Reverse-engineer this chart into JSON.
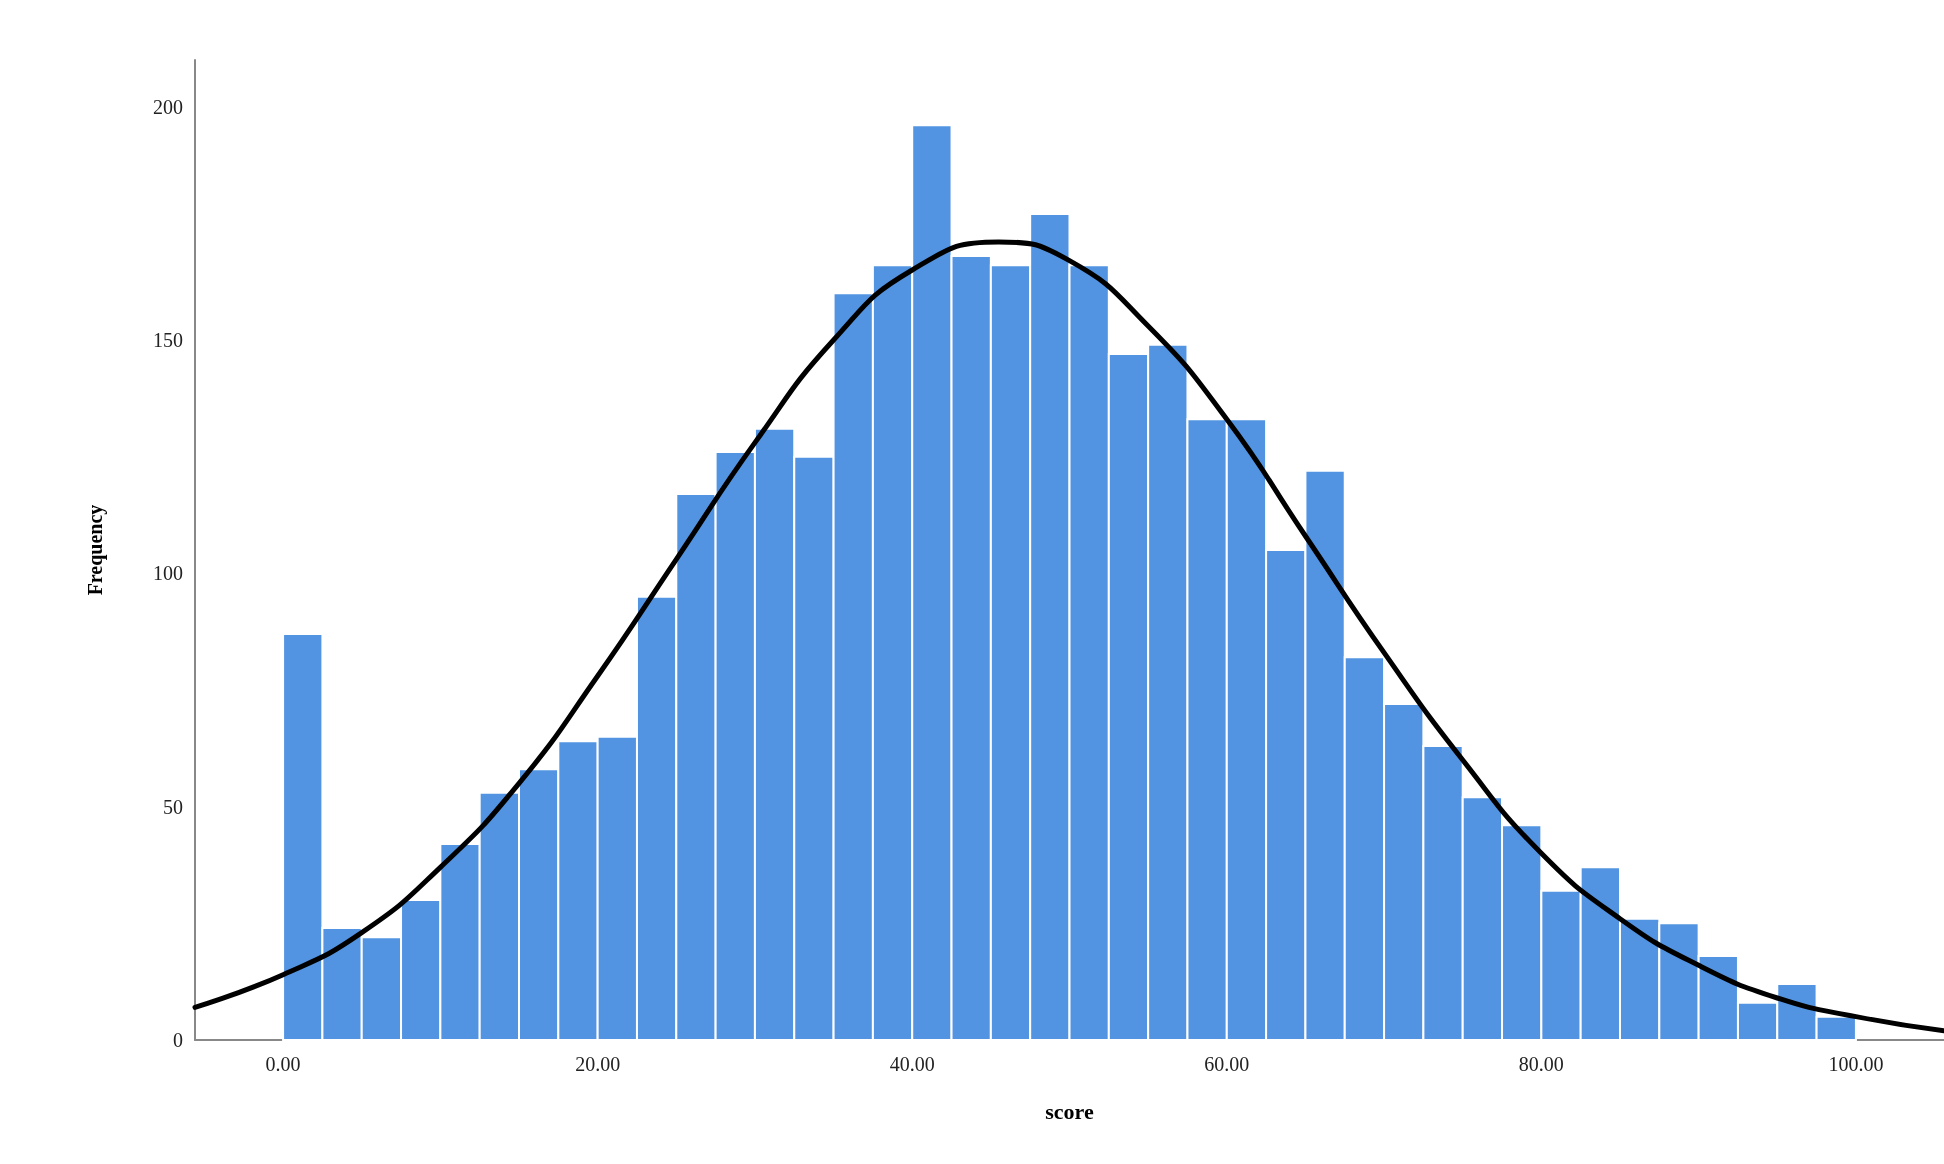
{
  "chart_data": {
    "type": "histogram",
    "xlabel": "score",
    "ylabel": "Frequency",
    "bins": [
      0,
      2.5,
      5,
      7.5,
      10,
      12.5,
      15,
      17.5,
      20,
      22.5,
      25,
      27.5,
      30,
      32.5,
      35,
      37.5,
      40,
      42.5,
      45,
      47.5,
      50,
      52.5,
      55,
      57.5,
      60,
      62.5,
      65,
      67.5,
      70,
      72.5,
      75,
      77.5,
      80,
      82.5,
      85,
      87.5,
      90,
      92.5,
      95,
      97.5,
      100
    ],
    "series": [
      {
        "color": "#5294e2",
        "values": [
          87,
          24,
          22,
          30,
          42,
          53,
          58,
          64,
          65,
          95,
          117,
          126,
          131,
          125,
          160,
          166,
          196,
          168,
          166,
          177,
          166,
          147,
          149,
          133,
          133,
          105,
          122,
          82,
          72,
          63,
          52,
          46,
          32,
          37,
          26,
          25,
          18,
          8,
          12,
          5
        ]
      },
      {
        "type": "line",
        "color": "#000000",
        "x": [
          -5.6,
          0,
          5,
          10,
          15,
          20,
          25,
          30,
          35,
          40,
          45.5,
          50,
          55,
          60,
          65,
          70,
          75,
          80,
          85,
          90,
          95,
          100,
          105.6
        ],
        "values": [
          7,
          14,
          23,
          37,
          55,
          78,
          103,
          128,
          150,
          165,
          171,
          167,
          153,
          133,
          108,
          83,
          60,
          40,
          26,
          16,
          9,
          5,
          2
        ]
      }
    ],
    "xlim": [
      -5.6,
      105.6
    ],
    "ylim": [
      0,
      210
    ],
    "xticks": [
      {
        "value": 0,
        "label": "0.00"
      },
      {
        "value": 20,
        "label": "20.00"
      },
      {
        "value": 40,
        "label": "40.00"
      },
      {
        "value": 60,
        "label": "60.00"
      },
      {
        "value": 80,
        "label": "80.00"
      },
      {
        "value": 100,
        "label": "100.00"
      }
    ],
    "yticks": [
      0,
      50,
      100,
      150,
      200
    ],
    "grid": false,
    "marker": "none",
    "line_style": "solid"
  }
}
